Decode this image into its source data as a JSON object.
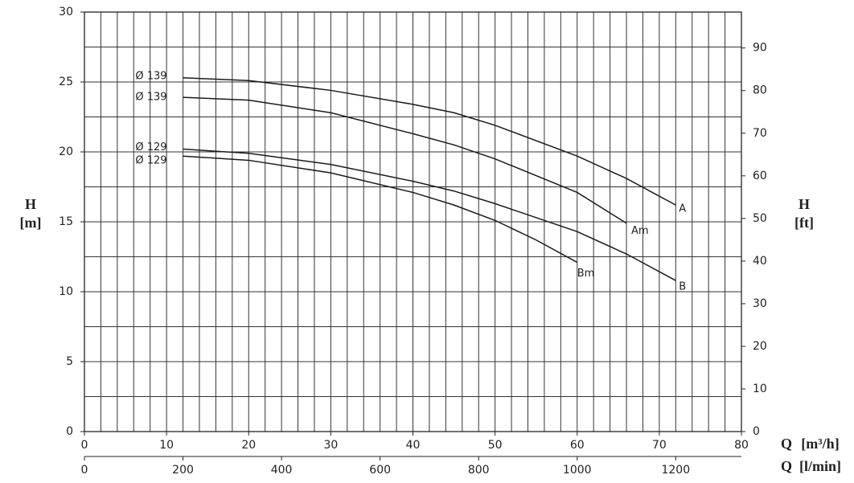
{
  "chart_data": {
    "type": "line",
    "y_label": "H",
    "y_unit": "[m]",
    "y2_label": "H",
    "y2_unit": "[ft]",
    "x_label": "Q",
    "x_unit": "[m³/h]",
    "x2_label": "Q",
    "x2_unit": "[l/min]",
    "xlim": [
      0,
      80
    ],
    "xticks": [
      0,
      10,
      20,
      30,
      40,
      50,
      60,
      70,
      80
    ],
    "x2lim": [
      0,
      1333.33
    ],
    "x2ticks": [
      0,
      200,
      400,
      600,
      800,
      1000,
      1200
    ],
    "ylim": [
      0,
      30
    ],
    "yticks": [
      0,
      5,
      10,
      15,
      20,
      25,
      30
    ],
    "y2lim": [
      0,
      98.43
    ],
    "y2ticks": [
      0,
      10,
      20,
      30,
      40,
      50,
      60,
      70,
      80,
      90
    ],
    "grid": true,
    "xgrid": [
      0,
      2,
      4,
      6,
      8,
      10,
      12,
      14,
      16,
      18,
      20,
      22,
      24,
      26,
      28,
      30,
      32,
      34,
      36,
      38,
      40,
      42,
      44,
      46,
      48,
      50,
      52,
      54,
      56,
      58,
      60,
      62,
      64,
      66,
      68,
      70,
      72,
      74,
      76,
      78,
      80
    ],
    "ygrid": [
      0,
      2.5,
      5,
      7.5,
      10,
      12.5,
      15,
      17.5,
      20,
      22.5,
      25,
      27.5,
      30
    ],
    "series": [
      {
        "name": "A",
        "diameter": "Ø 139",
        "color": "#1a1a1a",
        "x": [
          12,
          20,
          30,
          40,
          45,
          50,
          60,
          66,
          72
        ],
        "values": [
          25.3,
          25.1,
          24.4,
          23.4,
          22.8,
          21.9,
          19.7,
          18.1,
          16.2
        ]
      },
      {
        "name": "Am",
        "diameter": "Ø 139",
        "color": "#1a1a1a",
        "x": [
          12,
          20,
          30,
          40,
          45,
          50,
          60,
          66
        ],
        "values": [
          23.9,
          23.7,
          22.8,
          21.3,
          20.5,
          19.5,
          17.1,
          14.9
        ]
      },
      {
        "name": "B",
        "diameter": "Ø 129",
        "color": "#1a1a1a",
        "x": [
          12,
          20,
          30,
          40,
          45,
          50,
          60,
          66,
          72
        ],
        "values": [
          20.2,
          19.9,
          19.1,
          17.9,
          17.2,
          16.3,
          14.3,
          12.7,
          10.8
        ]
      },
      {
        "name": "Bm",
        "diameter": "Ø 129",
        "color": "#1a1a1a",
        "x": [
          12,
          20,
          30,
          40,
          45,
          50,
          55,
          60
        ],
        "values": [
          19.7,
          19.4,
          18.5,
          17.1,
          16.2,
          15.1,
          13.7,
          12.1
        ]
      }
    ]
  }
}
